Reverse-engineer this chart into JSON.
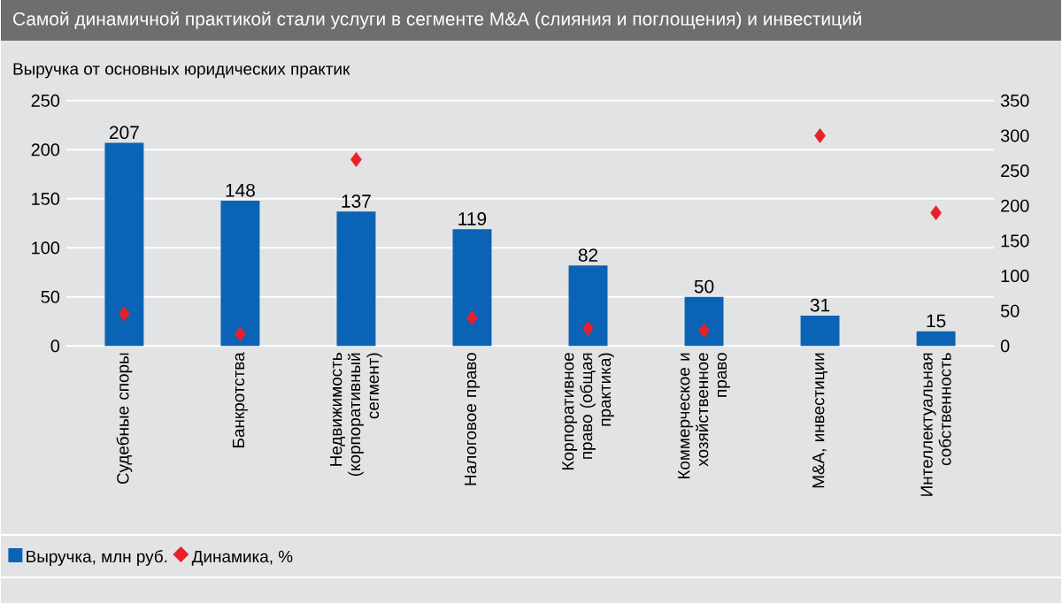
{
  "chart_data": {
    "type": "bar",
    "title": "Самой динамичной практикой стали услуги в сегменте M&A (слияния и поглощения) и инвестиций",
    "subtitle": "Выручка от основных юридических практик",
    "categories": [
      "Судебные споры",
      "Банкротства",
      "Недвижимость (корпоративный сегмент)",
      "Налоговое право",
      "Корпоративное право (общая практика)",
      "Коммерческое и хозяйственное право",
      "M&A, инвестиции",
      "Интеллектуальная собственность"
    ],
    "series": [
      {
        "name": "Выручка, млн руб.",
        "color": "#0a63b4",
        "values": [
          207,
          148,
          137,
          119,
          82,
          50,
          31,
          15
        ],
        "value_labels": [
          "207",
          "148",
          "137",
          "119",
          "82",
          "50",
          "31",
          "15"
        ]
      },
      {
        "name": "Динамика, %",
        "type": "scatter",
        "axis": "y2",
        "color": "#e8202a",
        "values": [
          46,
          17,
          266,
          40,
          25,
          22,
          300,
          190
        ]
      }
    ],
    "ylim": [
      0,
      250
    ],
    "yticks": [
      0,
      50,
      100,
      150,
      200,
      250
    ],
    "y2lim": [
      0,
      350
    ],
    "y2ticks": [
      0,
      50,
      100,
      150,
      200,
      250,
      300,
      350
    ],
    "grid": "y",
    "legend": "bottom",
    "marker": "diamond"
  }
}
